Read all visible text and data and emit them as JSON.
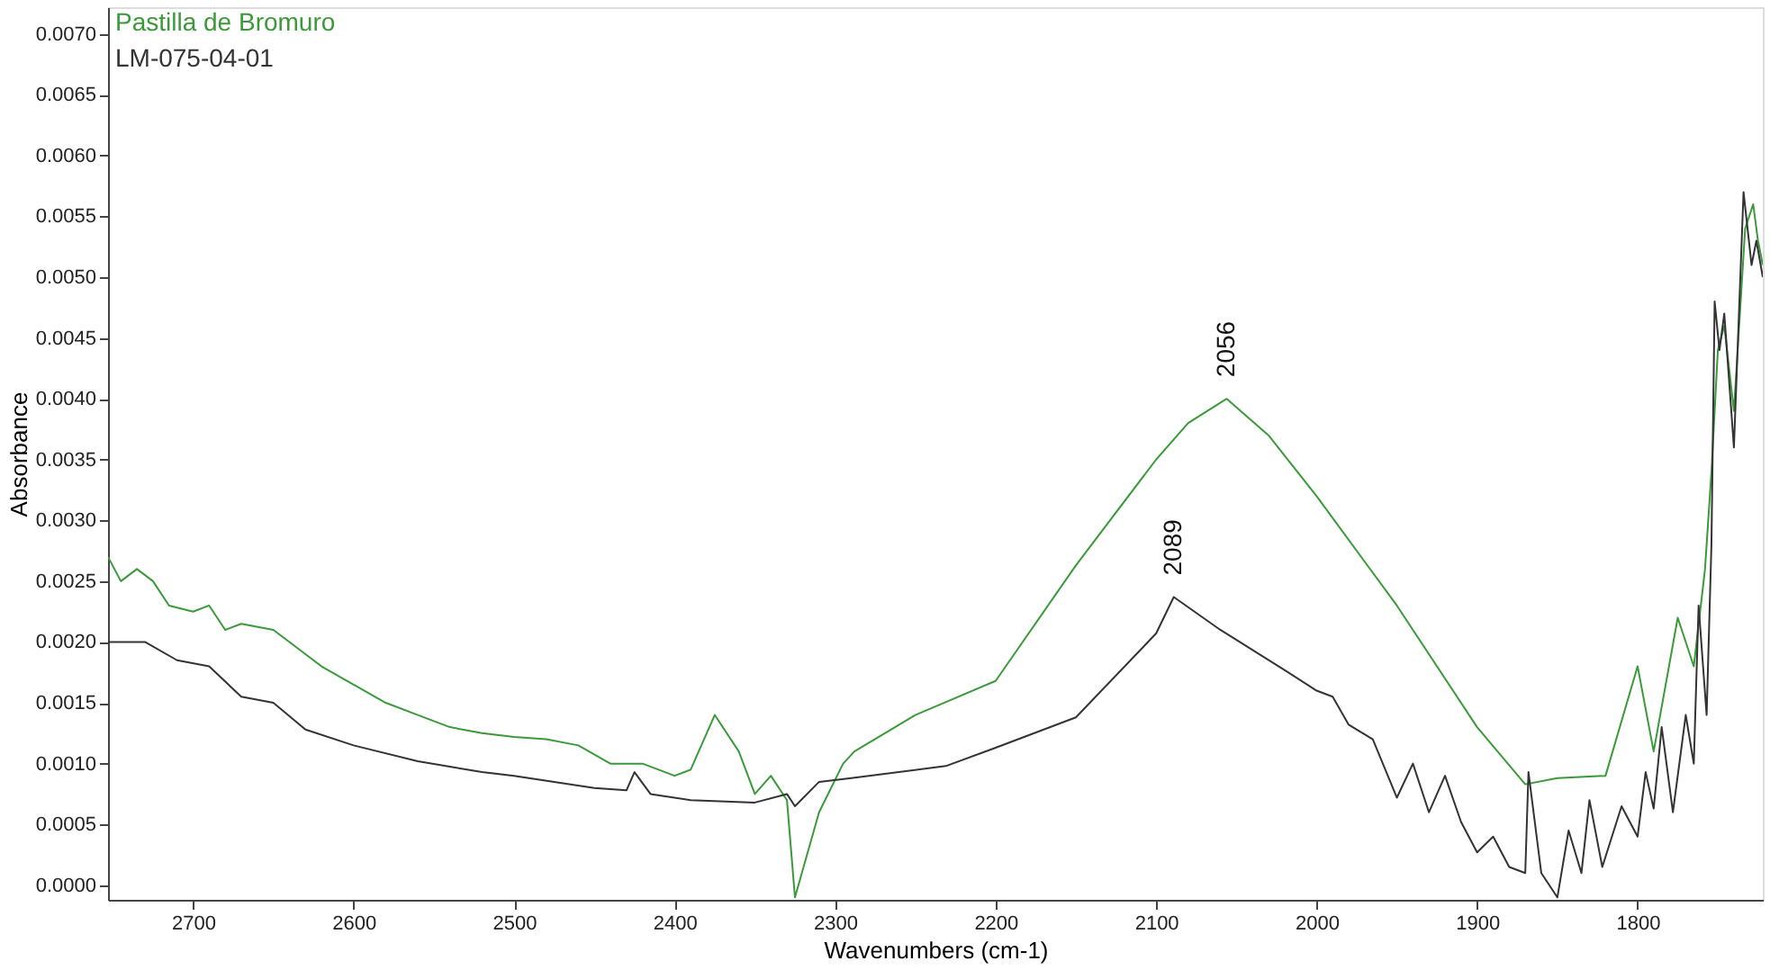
{
  "chart_data": {
    "type": "line",
    "xlabel": "Wavenumbers (cm-1)",
    "ylabel": "Absorbance",
    "xlim": [
      2753,
      1722
    ],
    "xticks": [
      2700,
      2600,
      2500,
      2400,
      2300,
      2200,
      2100,
      2000,
      1900,
      1800
    ],
    "ylim": [
      -0.00012,
      0.00722
    ],
    "yticks": [
      {
        "value": 0,
        "label": "0.0000"
      },
      {
        "value": 0.0005,
        "label": "0.0005"
      },
      {
        "value": 0.001,
        "label": "0.0010"
      },
      {
        "value": 0.0015,
        "label": "0.0015"
      },
      {
        "value": 0.002,
        "label": "0.0020"
      },
      {
        "value": 0.0025,
        "label": "0.0025"
      },
      {
        "value": 0.003,
        "label": "0.0030"
      },
      {
        "value": 0.0035,
        "label": "0.0035"
      },
      {
        "value": 0.004,
        "label": "0.0040"
      },
      {
        "value": 0.0045,
        "label": "0.0045"
      },
      {
        "value": 0.005,
        "label": "0.0050"
      },
      {
        "value": 0.0055,
        "label": "0.0055"
      },
      {
        "value": 0.006,
        "label": "0.0060"
      },
      {
        "value": 0.0065,
        "label": "0.0065"
      },
      {
        "value": 0.007,
        "label": "0.0070"
      }
    ],
    "grid": false,
    "legend": "top left",
    "marker": "none",
    "line_style": "solid",
    "series": [
      {
        "name": "Pastilla de Bromuro",
        "color": "#3a9a3a",
        "x": [
          2753,
          2745,
          2735,
          2725,
          2715,
          2700,
          2690,
          2680,
          2670,
          2650,
          2640,
          2620,
          2600,
          2580,
          2560,
          2540,
          2520,
          2500,
          2480,
          2460,
          2440,
          2420,
          2400,
          2390,
          2375,
          2360,
          2350,
          2340,
          2330,
          2325,
          2310,
          2295,
          2288,
          2250,
          2200,
          2150,
          2100,
          2080,
          2056,
          2030,
          2000,
          1950,
          1900,
          1870,
          1850,
          1820,
          1800,
          1790,
          1775,
          1765,
          1758,
          1754,
          1750,
          1746,
          1740,
          1733,
          1728,
          1725,
          1722
        ],
        "values": [
          0.0027,
          0.0025,
          0.0026,
          0.0025,
          0.0023,
          0.00225,
          0.0023,
          0.0021,
          0.00215,
          0.0021,
          0.002,
          0.0018,
          0.00165,
          0.0015,
          0.0014,
          0.0013,
          0.00125,
          0.00122,
          0.0012,
          0.00115,
          0.001,
          0.001,
          0.0009,
          0.00095,
          0.0014,
          0.0011,
          0.00075,
          0.0009,
          0.0007,
          -0.0001,
          0.0006,
          0.001,
          0.0011,
          0.0014,
          0.00168,
          0.00263,
          0.0035,
          0.0038,
          0.004,
          0.0037,
          0.0032,
          0.0023,
          0.0013,
          0.00083,
          0.00088,
          0.0009,
          0.0018,
          0.0011,
          0.0022,
          0.0018,
          0.0026,
          0.0034,
          0.0044,
          0.0046,
          0.0039,
          0.0054,
          0.0056,
          0.0053,
          0.0051
        ]
      },
      {
        "name": "LM-075-04-01",
        "color": "#333333",
        "x": [
          2753,
          2730,
          2710,
          2690,
          2670,
          2650,
          2630,
          2600,
          2560,
          2520,
          2500,
          2450,
          2430,
          2425,
          2415,
          2390,
          2350,
          2330,
          2325,
          2310,
          2290,
          2231,
          2200,
          2150,
          2100,
          2089,
          2060,
          2020,
          2000,
          1990,
          1980,
          1965,
          1950,
          1940,
          1930,
          1920,
          1910,
          1900,
          1890,
          1880,
          1870,
          1868,
          1860,
          1850,
          1843,
          1835,
          1830,
          1822,
          1810,
          1800,
          1795,
          1790,
          1785,
          1778,
          1770,
          1765,
          1762,
          1757,
          1754,
          1752,
          1749,
          1746,
          1740,
          1734,
          1729,
          1726,
          1722
        ],
        "values": [
          0.002,
          0.002,
          0.00185,
          0.0018,
          0.00155,
          0.0015,
          0.00128,
          0.00115,
          0.00102,
          0.00093,
          0.0009,
          0.0008,
          0.00078,
          0.00093,
          0.00075,
          0.0007,
          0.00068,
          0.00075,
          0.00065,
          0.00085,
          0.00088,
          0.00098,
          0.00113,
          0.00138,
          0.00207,
          0.00237,
          0.0021,
          0.00177,
          0.0016,
          0.00155,
          0.00132,
          0.0012,
          0.00072,
          0.001,
          0.0006,
          0.0009,
          0.00052,
          0.00027,
          0.0004,
          0.00015,
          0.0001,
          0.00093,
          0.0001,
          -0.0001,
          0.00045,
          0.0001,
          0.0007,
          0.00015,
          0.00065,
          0.0004,
          0.00093,
          0.00063,
          0.0013,
          0.0006,
          0.0014,
          0.001,
          0.0023,
          0.0014,
          0.0028,
          0.0048,
          0.0044,
          0.0047,
          0.0036,
          0.0057,
          0.0051,
          0.0053,
          0.005
        ]
      }
    ],
    "annotations": [
      {
        "text": "2056",
        "x": 2056,
        "y": 0.004
      },
      {
        "text": "2089",
        "x": 2089,
        "y": 0.00237
      }
    ]
  }
}
